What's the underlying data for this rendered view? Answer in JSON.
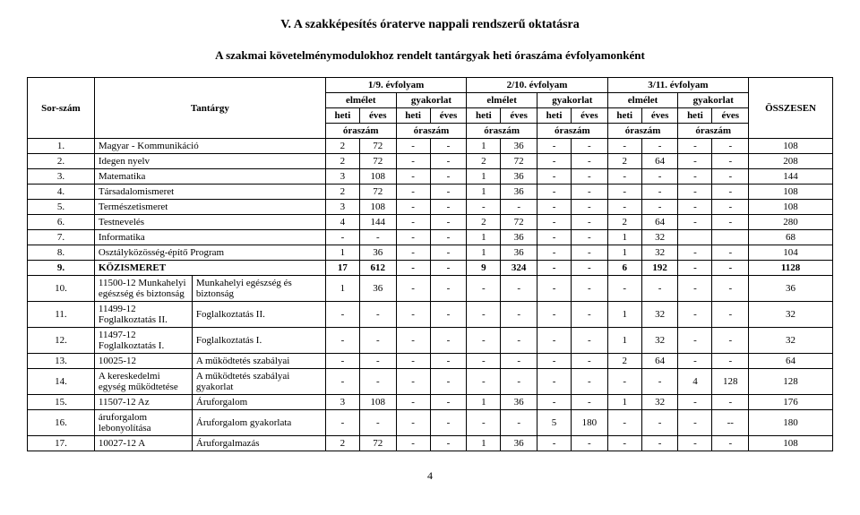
{
  "title": "V. A szakképesítés óraterve nappali rendszerű oktatásra",
  "subtitle": "A szakmai követelménymodulokhoz rendelt tantárgyak heti óraszáma évfolyamonként",
  "header": {
    "sor": "Sor-szám",
    "tantargy": "Tantárgy",
    "years": [
      "1/9. évfolyam",
      "2/10. évfolyam",
      "3/11. évfolyam"
    ],
    "elmelet": "elmélet",
    "gyakorlat": "gyakorlat",
    "heti": "heti",
    "eves": "éves",
    "oraszam": "óraszám",
    "osszesen": "ÖSSZESEN"
  },
  "rows": [
    {
      "n": "1.",
      "subj": "Magyar - Kommunikáció",
      "c": [
        "2",
        "72",
        "-",
        "-",
        "1",
        "36",
        "-",
        "-",
        "-",
        "-",
        "-",
        "-"
      ],
      "t": "108"
    },
    {
      "n": "2.",
      "subj": "Idegen nyelv",
      "c": [
        "2",
        "72",
        "-",
        "-",
        "2",
        "72",
        "-",
        "-",
        "2",
        "64",
        "-",
        "-"
      ],
      "t": "208"
    },
    {
      "n": "3.",
      "subj": "Matematika",
      "c": [
        "3",
        "108",
        "-",
        "-",
        "1",
        "36",
        "-",
        "-",
        "-",
        "-",
        "-",
        "-"
      ],
      "t": "144"
    },
    {
      "n": "4.",
      "subj": "Társadalomismeret",
      "c": [
        "2",
        "72",
        "-",
        "-",
        "1",
        "36",
        "-",
        "-",
        "-",
        "-",
        "-",
        "-"
      ],
      "t": "108"
    },
    {
      "n": "5.",
      "subj": "Természetismeret",
      "c": [
        "3",
        "108",
        "-",
        "-",
        "-",
        "-",
        "-",
        "-",
        "-",
        "-",
        "-",
        "-"
      ],
      "t": "108"
    },
    {
      "n": "6.",
      "subj": "Testnevelés",
      "c": [
        "4",
        "144",
        "-",
        "-",
        "2",
        "72",
        "-",
        "-",
        "2",
        "64",
        "-",
        "-"
      ],
      "t": "280"
    },
    {
      "n": "7.",
      "subj": "Informatika",
      "c": [
        "-",
        "-",
        "-",
        "-",
        "1",
        "36",
        "-",
        "-",
        "1",
        "32",
        "",
        ""
      ],
      "t": "68"
    },
    {
      "n": "8.",
      "subj": "Osztályközösség-építő Program",
      "c": [
        "1",
        "36",
        "-",
        "-",
        "1",
        "36",
        "-",
        "-",
        "1",
        "32",
        "-",
        "-"
      ],
      "t": "104"
    },
    {
      "n": "9.",
      "subj": "KÖZISMERET",
      "c": [
        "17",
        "612",
        "-",
        "-",
        "9",
        "324",
        "-",
        "-",
        "6",
        "192",
        "-",
        "-"
      ],
      "t": "1128",
      "bold": true
    },
    {
      "n": "10.",
      "subj": "11500-12 Munkahelyi egészség és biztonság",
      "s2": "Munkahelyi egészség és biztonság",
      "c": [
        "1",
        "36",
        "-",
        "-",
        "-",
        "-",
        "-",
        "-",
        "-",
        "-",
        "-",
        "-"
      ],
      "t": "36"
    },
    {
      "n": "11.",
      "subj": "11499-12 Foglalkoztatás II.",
      "s2": "Foglalkoztatás II.",
      "c": [
        "-",
        "-",
        "-",
        "-",
        "-",
        "-",
        "-",
        "-",
        "1",
        "32",
        "-",
        "-"
      ],
      "t": "32"
    },
    {
      "n": "12.",
      "subj": "11497-12 Foglalkoztatás I.",
      "s2": "Foglalkoztatás I.",
      "c": [
        "-",
        "-",
        "-",
        "-",
        "-",
        "-",
        "-",
        "-",
        "1",
        "32",
        "-",
        "-"
      ],
      "t": "32"
    },
    {
      "n": "13.",
      "subj": "10025-12",
      "s2": "A működtetés szabályai",
      "c": [
        "-",
        "-",
        "-",
        "-",
        "-",
        "-",
        "-",
        "-",
        "2",
        "64",
        "-",
        "-"
      ],
      "t": "64"
    },
    {
      "n": "14.",
      "subj": "A kereskedelmi egység működtetése",
      "s2": "A működtetés szabályai gyakorlat",
      "c": [
        "-",
        "-",
        "-",
        "-",
        "-",
        "-",
        "-",
        "-",
        "-",
        "-",
        "4",
        "128"
      ],
      "t": "128"
    },
    {
      "n": "15.",
      "subj": "11507-12 Az",
      "s2": "Áruforgalom",
      "c": [
        "3",
        "108",
        "-",
        "-",
        "1",
        "36",
        "-",
        "-",
        "1",
        "32",
        "-",
        "-"
      ],
      "t": "176"
    },
    {
      "n": "16.",
      "subj": "áruforgalom lebonyolítása",
      "s2": "Áruforgalom gyakorlata",
      "c": [
        "-",
        "-",
        "-",
        "-",
        "-",
        "-",
        "5",
        "180",
        "-",
        "-",
        "-",
        "--"
      ],
      "t": "180"
    },
    {
      "n": "17.",
      "subj": "10027-12 A",
      "s2": "Áruforgalmazás",
      "c": [
        "2",
        "72",
        "-",
        "-",
        "1",
        "36",
        "-",
        "-",
        "-",
        "-",
        "-",
        "-"
      ],
      "t": "108"
    }
  ],
  "pageNum": "4"
}
